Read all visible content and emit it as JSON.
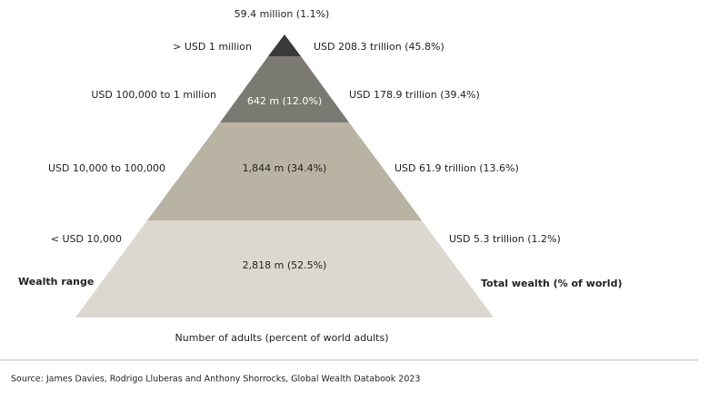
{
  "top_label": "59.4 million (1.1%)",
  "tiers": [
    {
      "range": ">  USD 1 million",
      "wealth": "USD 208.3 trillion (45.8%)"
    },
    {
      "range": "USD 100,000  to 1 million",
      "adults": "642 m (12.0%)",
      "wealth": "USD 178.9 trillion (39.4%)"
    },
    {
      "range": "USD 10,000  to 100,000",
      "adults": "1,844 m (34.4%)",
      "wealth": "USD 61.9 trillion (13.6%)"
    },
    {
      "range": "< USD 10,000",
      "adults": "2,818 m (52.5%)",
      "wealth": "USD 5.3 trillion (1.2%)"
    }
  ],
  "left_heading": "Wealth range",
  "right_heading": "Total wealth (% of world)",
  "bottom_caption": "Number of adults (percent of world adults)",
  "source": "Source: James Davies, Rodrigo Lluberas and Anthony Shorrocks, Global Wealth Databook 2023"
}
